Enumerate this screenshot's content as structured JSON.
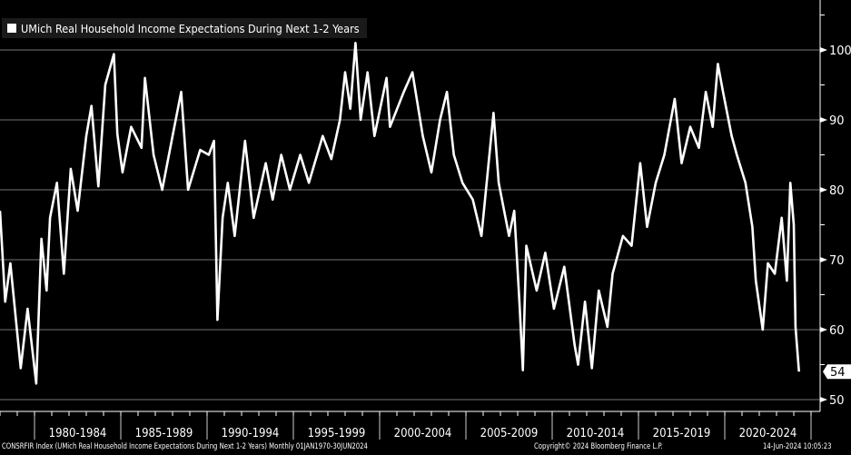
{
  "chart_data": {
    "type": "line",
    "title": "",
    "xlabel": "",
    "ylabel": "",
    "xlim": [
      1978.0,
      2025.5
    ],
    "ylim": [
      49,
      104
    ],
    "grid": true,
    "legend_placement": "top-left",
    "line_color": "#ffffff",
    "background": "#000000",
    "yticks": [
      50,
      60,
      70,
      80,
      90,
      100
    ],
    "xtick_labels": [
      {
        "label": "1980-1984",
        "start": 1980
      },
      {
        "label": "1985-1989",
        "start": 1985
      },
      {
        "label": "1990-1994",
        "start": 1990
      },
      {
        "label": "1995-1999",
        "start": 1995
      },
      {
        "label": "2000-2004",
        "start": 2000
      },
      {
        "label": "2005-2009",
        "start": 2005
      },
      {
        "label": "2010-2014",
        "start": 2010
      },
      {
        "label": "2015-2019",
        "start": 2015
      },
      {
        "label": "2020-2024",
        "start": 2020
      }
    ],
    "series": [
      {
        "name": "UMich Real Household Income Expectations During Next 1-2 Years",
        "x": [
          1978.0,
          1978.3,
          1978.6,
          1979.2,
          1979.6,
          1980.1,
          1980.4,
          1980.7,
          1980.9,
          1981.3,
          1981.7,
          1982.1,
          1982.5,
          1983.0,
          1983.3,
          1983.7,
          1984.1,
          1984.6,
          1984.8,
          1985.1,
          1985.6,
          1986.2,
          1986.4,
          1986.9,
          1987.4,
          1988.0,
          1988.5,
          1988.9,
          1989.6,
          1990.1,
          1990.4,
          1990.6,
          1990.9,
          1991.2,
          1991.6,
          1992.2,
          1992.7,
          1993.4,
          1993.8,
          1994.3,
          1994.8,
          1995.4,
          1995.9,
          1996.7,
          1997.2,
          1997.7,
          1998.0,
          1998.3,
          1998.6,
          1998.9,
          1999.3,
          1999.7,
          2000.4,
          2000.6,
          2001.4,
          2001.9,
          2002.5,
          2003.0,
          2003.5,
          2003.9,
          2004.3,
          2004.8,
          2005.4,
          2005.9,
          2006.6,
          2006.9,
          2007.5,
          2007.8,
          2008.1,
          2008.3,
          2008.5,
          2009.1,
          2009.6,
          2010.1,
          2010.7,
          2011.3,
          2011.5,
          2011.9,
          2012.3,
          2012.7,
          2013.2,
          2013.5,
          2014.1,
          2014.6,
          2015.1,
          2015.5,
          2016.0,
          2016.5,
          2017.1,
          2017.5,
          2018.0,
          2018.5,
          2018.9,
          2019.3,
          2019.6,
          2019.9,
          2020.4,
          2020.7,
          2021.2,
          2021.6,
          2021.8,
          2022.2,
          2022.5,
          2022.9,
          2023.3,
          2023.6,
          2023.8,
          2024.0,
          2024.1,
          2024.3
        ],
        "values": [
          77,
          64,
          69.5,
          54.5,
          63,
          52.3,
          73,
          65.6,
          76,
          81,
          68,
          83,
          77,
          87.7,
          92,
          80.5,
          95,
          99.4,
          88,
          82.5,
          89,
          86,
          96,
          85,
          80,
          87.7,
          94,
          80,
          85.7,
          85,
          87,
          61.4,
          76,
          81,
          73.4,
          87,
          76,
          83.8,
          78.6,
          85,
          80,
          85,
          81,
          87.7,
          84.4,
          90,
          96.8,
          91.6,
          101,
          90,
          96.8,
          87.7,
          96,
          89,
          94,
          96.8,
          87.7,
          82.5,
          90,
          94,
          85,
          81,
          78.6,
          73.4,
          91,
          81,
          73.4,
          77,
          64,
          54.2,
          72,
          65.6,
          71,
          63,
          69,
          57.8,
          55,
          64,
          54.5,
          65.6,
          60.4,
          68,
          73.4,
          72,
          83.8,
          74.7,
          81,
          85,
          93,
          83.8,
          89,
          86,
          94,
          89,
          98,
          94,
          87.7,
          85,
          81,
          74.7,
          67,
          60,
          69.5,
          68,
          76,
          67,
          81,
          75,
          60.4,
          54
        ]
      }
    ],
    "last_value_label": "54"
  },
  "footer": {
    "source": "CONSRFIR Index (UMich Real Household Income Expectations During Next 1-2 Years)  Monthly 01JAN1970-30JUN2024",
    "copyright": "Copyright© 2024 Bloomberg Finance L.P.",
    "timestamp": "14-Jun-2024 10:05:23"
  }
}
